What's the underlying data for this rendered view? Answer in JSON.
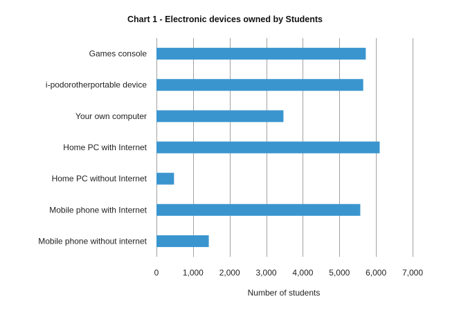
{
  "chart_data": {
    "type": "bar",
    "orientation": "horizontal",
    "title": "Chart 1 - Electronic devices owned by Students",
    "xlabel": "Number of students",
    "ylabel": "",
    "categories": [
      "Games console",
      "i-podorotherportable device",
      "Your own computer",
      "Home PC with Internet",
      "Home PC without Internet",
      "Mobile phone with Internet",
      "Mobile phone without internet"
    ],
    "values": [
      5720,
      5650,
      3470,
      6100,
      480,
      5570,
      1430
    ],
    "xlim": [
      0,
      7000
    ],
    "x_ticks": [
      0,
      1000,
      2000,
      3000,
      4000,
      5000,
      6000,
      7000
    ],
    "x_tick_labels": [
      "0",
      "1,000",
      "2,000",
      "3,000",
      "4,000",
      "5,000",
      "6,000",
      "7,000"
    ],
    "grid": "vertical",
    "legend": "none",
    "bar_color": "#3a95cf"
  }
}
